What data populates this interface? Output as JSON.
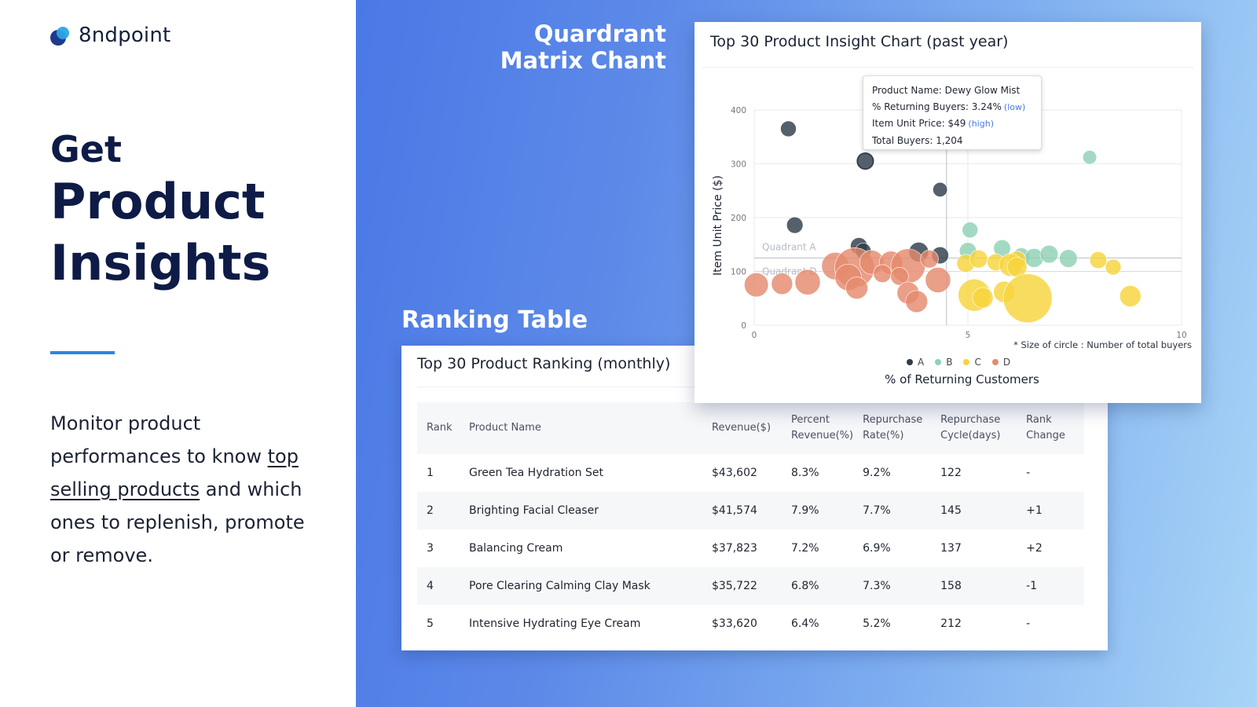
{
  "brand": {
    "name": "8ndpoint",
    "colors": {
      "navy": "#1f3a8a",
      "cyan": "#2aa7e6"
    }
  },
  "hero": {
    "line1": "Get",
    "line2": "Product",
    "line3": "Insights",
    "desc_part1": "Monitor product performances to know ",
    "desc_link": "top selling products",
    "desc_part2": " and which ones to replenish, promote or remove."
  },
  "labels": {
    "quadrant_line1": "Quardrant",
    "quadrant_line2": "Matrix Chant",
    "ranking": "Ranking Table"
  },
  "ranking_table": {
    "title": "Top 30 Product Ranking (monthly)",
    "headers": {
      "rank": "Rank",
      "name": "Product Name",
      "revenue": "Revenue($)",
      "percent_l1": "Percent",
      "percent_l2": "Revenue(%)",
      "rep_rate_l1": "Repurchase",
      "rep_rate_l2": "Rate(%)",
      "rep_cycle_l1": "Repurchase",
      "rep_cycle_l2": "Cycle(days)",
      "change_l1": "Rank",
      "change_l2": "Change"
    },
    "rows": [
      {
        "rank": "1",
        "name": "Green Tea Hydration Set",
        "revenue": "$43,602",
        "percent": "8.3%",
        "rate": "9.2%",
        "cycle": "122",
        "change": "-"
      },
      {
        "rank": "2",
        "name": "Brighting Facial Cleaser",
        "revenue": "$41,574",
        "percent": "7.9%",
        "rate": "7.7%",
        "cycle": "145",
        "change": "+1"
      },
      {
        "rank": "3",
        "name": "Balancing Cream",
        "revenue": "$37,823",
        "percent": "7.2%",
        "rate": "6.9%",
        "cycle": "137",
        "change": "+2"
      },
      {
        "rank": "4",
        "name": "Pore Clearing Calming Clay Mask",
        "revenue": "$35,722",
        "percent": "6.8%",
        "rate": "7.3%",
        "cycle": "158",
        "change": "-1"
      },
      {
        "rank": "5",
        "name": "Intensive Hydrating Eye Cream",
        "revenue": "$33,620",
        "percent": "6.4%",
        "rate": "5.2%",
        "cycle": "212",
        "change": "-"
      }
    ]
  },
  "tooltip": {
    "name": "Product Name: Dewy Glow Mist",
    "returning": "% Returning Buyers: 3.24%",
    "returning_tag": "(low)",
    "price": "Item Unit Price: $49",
    "price_tag": "(high)",
    "buyers": "Total Buyers: 1,204"
  },
  "chart_data": {
    "type": "scatter",
    "title": "Top 30 Product Insight Chart (past year)",
    "xlabel": "% of Returning Customers",
    "ylabel": "Item Unit Price ($)",
    "xlim": [
      0,
      10
    ],
    "ylim": [
      0,
      400
    ],
    "xticks": [
      0,
      5,
      10
    ],
    "yticks": [
      0,
      100,
      200,
      300,
      400
    ],
    "grid": true,
    "divider": {
      "x": 4.5,
      "y_upper": 125,
      "y_lower": 100
    },
    "quadrant_labels": [
      "Quadrant A",
      "Quadrant D"
    ],
    "footnote": "* Size of circle : Number of total buyers",
    "legend_position": "bottom",
    "series": [
      {
        "name": "A",
        "color": "#2f3d4a",
        "points": [
          {
            "x": 0.8,
            "y": 365,
            "size": 40
          },
          {
            "x": 0.95,
            "y": 186,
            "size": 45
          },
          {
            "x": 2.6,
            "y": 305,
            "size": 60
          },
          {
            "x": 4.35,
            "y": 252,
            "size": 30
          },
          {
            "x": 2.45,
            "y": 147,
            "size": 50
          },
          {
            "x": 2.55,
            "y": 138,
            "size": 40
          },
          {
            "x": 3.85,
            "y": 136,
            "size": 80
          },
          {
            "x": 4.35,
            "y": 130,
            "size": 50
          }
        ]
      },
      {
        "name": "B",
        "color": "#8fd1b5",
        "points": [
          {
            "x": 7.85,
            "y": 312,
            "size": 25
          },
          {
            "x": 5.05,
            "y": 177,
            "size": 40
          },
          {
            "x": 5.0,
            "y": 138,
            "size": 50
          },
          {
            "x": 5.8,
            "y": 143,
            "size": 50
          },
          {
            "x": 6.25,
            "y": 128,
            "size": 50
          },
          {
            "x": 6.55,
            "y": 125,
            "size": 70
          },
          {
            "x": 6.9,
            "y": 132,
            "size": 60
          },
          {
            "x": 7.35,
            "y": 124,
            "size": 60
          }
        ]
      },
      {
        "name": "C",
        "color": "#f6d43c",
        "points": [
          {
            "x": 4.95,
            "y": 115,
            "size": 60
          },
          {
            "x": 5.25,
            "y": 123,
            "size": 60
          },
          {
            "x": 5.65,
            "y": 117,
            "size": 50
          },
          {
            "x": 6.15,
            "y": 121,
            "size": 60
          },
          {
            "x": 8.05,
            "y": 121,
            "size": 50
          },
          {
            "x": 8.4,
            "y": 108,
            "size": 40
          },
          {
            "x": 6.0,
            "y": 112,
            "size": 120
          },
          {
            "x": 6.15,
            "y": 108,
            "size": 80
          },
          {
            "x": 5.85,
            "y": 62,
            "size": 100
          },
          {
            "x": 5.15,
            "y": 56,
            "size": 300
          },
          {
            "x": 5.35,
            "y": 51,
            "size": 90
          },
          {
            "x": 6.4,
            "y": 50,
            "size": 800
          },
          {
            "x": 8.8,
            "y": 54,
            "size": 100
          }
        ]
      },
      {
        "name": "D",
        "color": "#e58a6e",
        "points": [
          {
            "x": 0.05,
            "y": 75,
            "size": 140
          },
          {
            "x": 0.65,
            "y": 77,
            "size": 100
          },
          {
            "x": 1.25,
            "y": 80,
            "size": 160
          },
          {
            "x": 1.9,
            "y": 110,
            "size": 200
          },
          {
            "x": 2.35,
            "y": 107,
            "size": 500
          },
          {
            "x": 2.2,
            "y": 89,
            "size": 180
          },
          {
            "x": 2.4,
            "y": 69,
            "size": 110
          },
          {
            "x": 2.75,
            "y": 117,
            "size": 140
          },
          {
            "x": 3.2,
            "y": 116,
            "size": 130
          },
          {
            "x": 3.6,
            "y": 110,
            "size": 350
          },
          {
            "x": 3.0,
            "y": 96,
            "size": 60
          },
          {
            "x": 3.4,
            "y": 91,
            "size": 60
          },
          {
            "x": 3.6,
            "y": 60,
            "size": 110
          },
          {
            "x": 3.8,
            "y": 44,
            "size": 110
          },
          {
            "x": 4.1,
            "y": 123,
            "size": 60
          },
          {
            "x": 4.3,
            "y": 84,
            "size": 160
          }
        ]
      }
    ]
  }
}
